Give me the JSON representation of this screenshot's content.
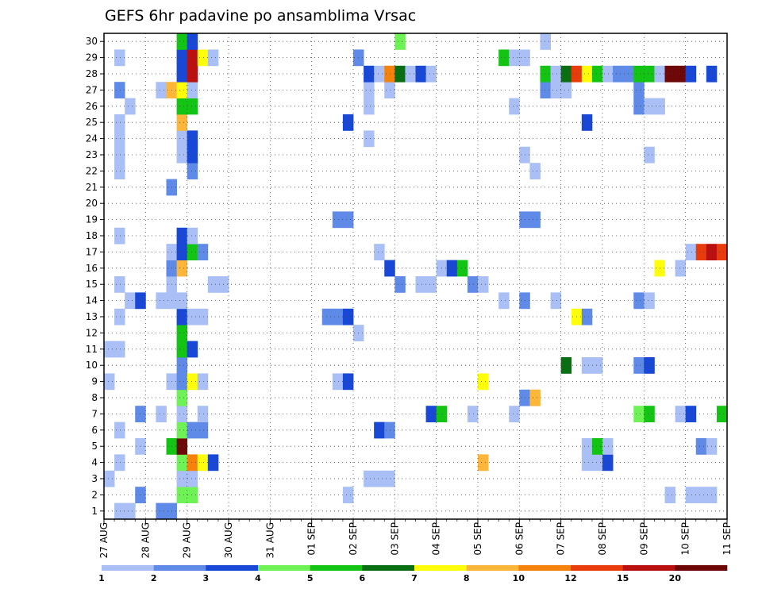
{
  "chart_data": {
    "type": "heatmap",
    "title": "GEFS 6hr padavine po ansamblima Vrsac",
    "xlabel": "",
    "ylabel": "",
    "x_ticks": [
      "27 AUG",
      "28 AUG",
      "29 AUG",
      "30 AUG",
      "31 AUG",
      "01 SEP",
      "02 SEP",
      "03 SEP",
      "04 SEP",
      "05 SEP",
      "06 SEP",
      "07 SEP",
      "08 SEP",
      "09 SEP",
      "10 SEP",
      "11 SEP"
    ],
    "xlim": [
      "27 AUG 00Z",
      "11 SEP 00Z"
    ],
    "time_step_hours": 6,
    "y_ticks": [
      1,
      2,
      3,
      4,
      5,
      6,
      7,
      8,
      9,
      10,
      11,
      12,
      13,
      14,
      15,
      16,
      17,
      18,
      19,
      20,
      21,
      22,
      23,
      24,
      25,
      26,
      27,
      28,
      29,
      30
    ],
    "ylim": [
      0,
      30
    ],
    "grid": true,
    "colorbar": {
      "labels": [
        "1",
        "2",
        "3",
        "4",
        "5",
        "6",
        "7",
        "8",
        "10",
        "12",
        "15",
        "20"
      ],
      "colors": [
        "#aabff5",
        "#5f8ae8",
        "#1a48d6",
        "#6ff255",
        "#14c414",
        "#0a6e12",
        "#fefe0a",
        "#fdb53a",
        "#f5820c",
        "#e83c0c",
        "#bb1010",
        "#6e0808"
      ]
    },
    "cells_format": "[x_index_6h_from_27AUG00Z, member, level_index]",
    "cells": [
      [
        1,
        0,
        0
      ],
      [
        2,
        0,
        0
      ],
      [
        5,
        0,
        1
      ],
      [
        6,
        0,
        1
      ],
      [
        3,
        1,
        1
      ],
      [
        7,
        1,
        3
      ],
      [
        8,
        1,
        3
      ],
      [
        23,
        1,
        0
      ],
      [
        54,
        1,
        0
      ],
      [
        56,
        1,
        0
      ],
      [
        57,
        1,
        0
      ],
      [
        58,
        1,
        0
      ],
      [
        60,
        1,
        2
      ],
      [
        61,
        1,
        5
      ],
      [
        63,
        1,
        0
      ],
      [
        64,
        1,
        4
      ],
      [
        65,
        1,
        4
      ],
      [
        66,
        1,
        0
      ],
      [
        67,
        1,
        0
      ],
      [
        68,
        1,
        0
      ],
      [
        0,
        2,
        0
      ],
      [
        7,
        2,
        0
      ],
      [
        8,
        2,
        0
      ],
      [
        25,
        2,
        0
      ],
      [
        26,
        2,
        0
      ],
      [
        27,
        2,
        0
      ],
      [
        62,
        2,
        0
      ],
      [
        1,
        3,
        0
      ],
      [
        7,
        3,
        3
      ],
      [
        8,
        3,
        8
      ],
      [
        9,
        3,
        6
      ],
      [
        10,
        3,
        2
      ],
      [
        36,
        3,
        7
      ],
      [
        46,
        3,
        0
      ],
      [
        47,
        3,
        0
      ],
      [
        48,
        3,
        2
      ],
      [
        3,
        4,
        0
      ],
      [
        6,
        4,
        4
      ],
      [
        7,
        4,
        11
      ],
      [
        46,
        4,
        0
      ],
      [
        47,
        4,
        4
      ],
      [
        48,
        4,
        0
      ],
      [
        57,
        4,
        1
      ],
      [
        58,
        4,
        0
      ],
      [
        1,
        5,
        0
      ],
      [
        7,
        5,
        3
      ],
      [
        8,
        5,
        1
      ],
      [
        9,
        5,
        1
      ],
      [
        26,
        5,
        2
      ],
      [
        27,
        5,
        1
      ],
      [
        3,
        6,
        1
      ],
      [
        5,
        6,
        0
      ],
      [
        7,
        6,
        0
      ],
      [
        9,
        6,
        0
      ],
      [
        31,
        6,
        2
      ],
      [
        32,
        6,
        4
      ],
      [
        35,
        6,
        0
      ],
      [
        39,
        6,
        0
      ],
      [
        51,
        6,
        3
      ],
      [
        52,
        6,
        4
      ],
      [
        55,
        6,
        0
      ],
      [
        56,
        6,
        2
      ],
      [
        59,
        6,
        4
      ],
      [
        60,
        6,
        8
      ],
      [
        7,
        7,
        3
      ],
      [
        40,
        7,
        1
      ],
      [
        41,
        7,
        7
      ],
      [
        0,
        8,
        0
      ],
      [
        6,
        8,
        0
      ],
      [
        7,
        8,
        1
      ],
      [
        8,
        8,
        6
      ],
      [
        9,
        8,
        0
      ],
      [
        22,
        8,
        0
      ],
      [
        23,
        8,
        2
      ],
      [
        36,
        8,
        6
      ],
      [
        7,
        9,
        1
      ],
      [
        44,
        9,
        5
      ],
      [
        46,
        9,
        0
      ],
      [
        47,
        9,
        0
      ],
      [
        51,
        9,
        1
      ],
      [
        52,
        9,
        2
      ],
      [
        0,
        10,
        0
      ],
      [
        1,
        10,
        0
      ],
      [
        7,
        10,
        4
      ],
      [
        8,
        10,
        2
      ],
      [
        7,
        11,
        4
      ],
      [
        24,
        11,
        0
      ],
      [
        1,
        12,
        0
      ],
      [
        7,
        12,
        2
      ],
      [
        8,
        12,
        0
      ],
      [
        9,
        12,
        0
      ],
      [
        21,
        12,
        1
      ],
      [
        22,
        12,
        1
      ],
      [
        23,
        12,
        2
      ],
      [
        45,
        12,
        6
      ],
      [
        46,
        12,
        1
      ],
      [
        2,
        13,
        0
      ],
      [
        3,
        13,
        2
      ],
      [
        5,
        13,
        0
      ],
      [
        6,
        13,
        0
      ],
      [
        7,
        13,
        0
      ],
      [
        38,
        13,
        0
      ],
      [
        40,
        13,
        1
      ],
      [
        43,
        13,
        0
      ],
      [
        51,
        13,
        1
      ],
      [
        52,
        13,
        0
      ],
      [
        1,
        14,
        0
      ],
      [
        6,
        14,
        0
      ],
      [
        10,
        14,
        0
      ],
      [
        11,
        14,
        0
      ],
      [
        28,
        14,
        1
      ],
      [
        30,
        14,
        0
      ],
      [
        31,
        14,
        0
      ],
      [
        35,
        14,
        1
      ],
      [
        36,
        14,
        0
      ],
      [
        6,
        15,
        1
      ],
      [
        7,
        15,
        7
      ],
      [
        27,
        15,
        2
      ],
      [
        32,
        15,
        0
      ],
      [
        33,
        15,
        2
      ],
      [
        34,
        15,
        4
      ],
      [
        53,
        15,
        6
      ],
      [
        55,
        15,
        0
      ],
      [
        6,
        16,
        0
      ],
      [
        7,
        16,
        2
      ],
      [
        8,
        16,
        4
      ],
      [
        9,
        16,
        1
      ],
      [
        26,
        16,
        0
      ],
      [
        56,
        16,
        0
      ],
      [
        57,
        16,
        9
      ],
      [
        58,
        16,
        10
      ],
      [
        59,
        16,
        9
      ],
      [
        60,
        16,
        11
      ],
      [
        1,
        17,
        0
      ],
      [
        7,
        17,
        2
      ],
      [
        8,
        17,
        0
      ],
      [
        22,
        18,
        1
      ],
      [
        23,
        18,
        1
      ],
      [
        40,
        18,
        1
      ],
      [
        41,
        18,
        1
      ],
      [
        6,
        20,
        1
      ],
      [
        1,
        21,
        0
      ],
      [
        8,
        21,
        1
      ],
      [
        41,
        21,
        0
      ],
      [
        1,
        22,
        0
      ],
      [
        7,
        22,
        0
      ],
      [
        8,
        22,
        2
      ],
      [
        40,
        22,
        0
      ],
      [
        52,
        22,
        0
      ],
      [
        1,
        23,
        0
      ],
      [
        7,
        23,
        0
      ],
      [
        8,
        23,
        2
      ],
      [
        25,
        23,
        0
      ],
      [
        1,
        24,
        0
      ],
      [
        7,
        24,
        7
      ],
      [
        23,
        24,
        2
      ],
      [
        46,
        24,
        2
      ],
      [
        2,
        25,
        0
      ],
      [
        7,
        25,
        4
      ],
      [
        8,
        25,
        4
      ],
      [
        25,
        25,
        0
      ],
      [
        39,
        25,
        0
      ],
      [
        51,
        25,
        1
      ],
      [
        52,
        25,
        0
      ],
      [
        53,
        25,
        0
      ],
      [
        1,
        26,
        1
      ],
      [
        5,
        26,
        0
      ],
      [
        6,
        26,
        7
      ],
      [
        7,
        26,
        6
      ],
      [
        8,
        26,
        0
      ],
      [
        25,
        26,
        0
      ],
      [
        27,
        26,
        0
      ],
      [
        42,
        26,
        1
      ],
      [
        43,
        26,
        0
      ],
      [
        44,
        26,
        0
      ],
      [
        51,
        26,
        1
      ],
      [
        7,
        27,
        2
      ],
      [
        8,
        27,
        10
      ],
      [
        25,
        27,
        2
      ],
      [
        26,
        27,
        0
      ],
      [
        27,
        27,
        8
      ],
      [
        28,
        27,
        5
      ],
      [
        29,
        27,
        0
      ],
      [
        30,
        27,
        2
      ],
      [
        31,
        27,
        0
      ],
      [
        42,
        27,
        4
      ],
      [
        43,
        27,
        0
      ],
      [
        44,
        27,
        5
      ],
      [
        45,
        27,
        9
      ],
      [
        46,
        27,
        6
      ],
      [
        47,
        27,
        4
      ],
      [
        48,
        27,
        0
      ],
      [
        49,
        27,
        1
      ],
      [
        50,
        27,
        1
      ],
      [
        51,
        27,
        4
      ],
      [
        52,
        27,
        4
      ],
      [
        53,
        27,
        0
      ],
      [
        54,
        27,
        11
      ],
      [
        55,
        27,
        11
      ],
      [
        56,
        27,
        2
      ],
      [
        58,
        27,
        2
      ],
      [
        1,
        28,
        0
      ],
      [
        7,
        28,
        2
      ],
      [
        8,
        28,
        10
      ],
      [
        9,
        28,
        6
      ],
      [
        10,
        28,
        0
      ],
      [
        24,
        28,
        1
      ],
      [
        38,
        28,
        4
      ],
      [
        39,
        28,
        0
      ],
      [
        40,
        28,
        0
      ],
      [
        60,
        28,
        5
      ],
      [
        7,
        29,
        4
      ],
      [
        8,
        29,
        2
      ],
      [
        28,
        29,
        3
      ],
      [
        42,
        29,
        0
      ],
      [
        7,
        30,
        1
      ],
      [
        8,
        30,
        3
      ],
      [
        9,
        30,
        2
      ],
      [
        10,
        30,
        0
      ],
      [
        7,
        31,
        2
      ],
      [
        8,
        31,
        1
      ],
      [
        9,
        31,
        0
      ],
      [
        28,
        31,
        0
      ],
      [
        29,
        31,
        0
      ],
      [
        7,
        32,
        0
      ],
      [
        8,
        32,
        2
      ],
      [
        9,
        32,
        0
      ],
      [
        26,
        32,
        0
      ],
      [
        27,
        32,
        0
      ],
      [
        28,
        32,
        0
      ]
    ]
  }
}
